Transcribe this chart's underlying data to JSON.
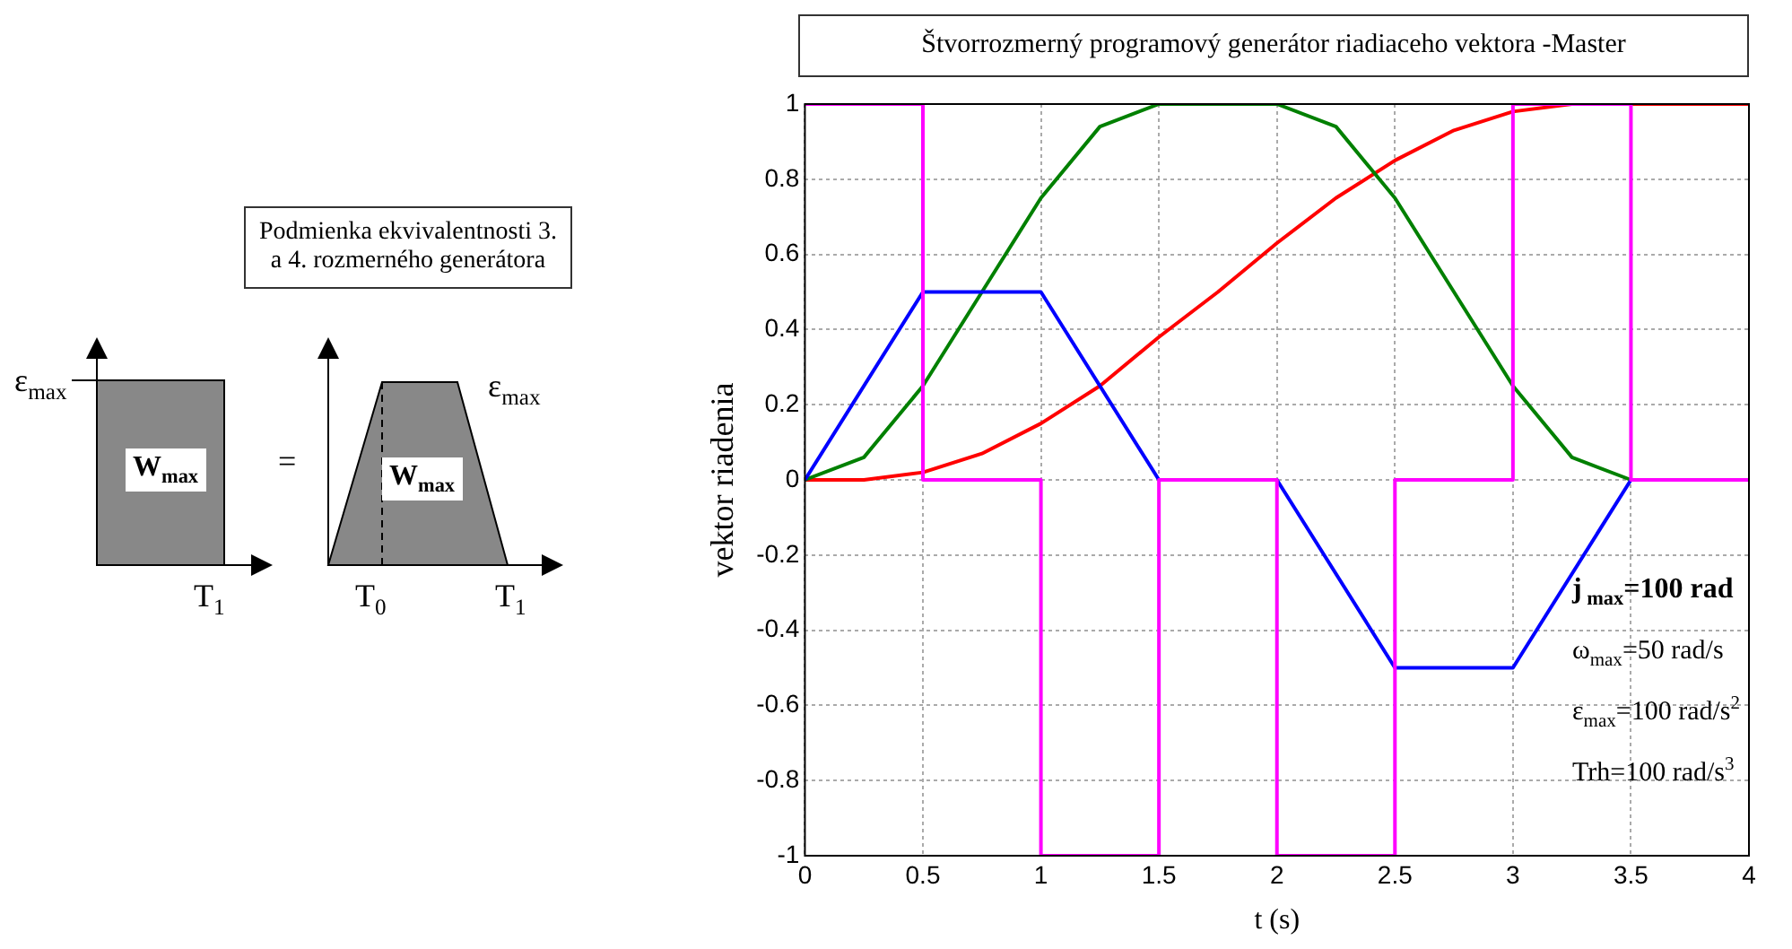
{
  "chart_data": [
    {
      "type": "other",
      "title": "Podmienka ekvivalentnosti 3. a 4. rozmerného generátora",
      "annotations": [
        "ε$_{max}$",
        "W$_{max}$",
        "=",
        "T$_{1}$",
        "W$_{max}$",
        "ε$_{max}$",
        "T$_{0}$",
        "T$_{1}$"
      ]
    },
    {
      "type": "line",
      "title": "Štvorrozmerný programový generátor riadiaceho vektora -Master",
      "xlabel": "t (s)",
      "ylabel": "vektor riadenia",
      "xlim": [
        0,
        4
      ],
      "xticks": [
        0,
        0.5,
        1,
        1.5,
        2,
        2.5,
        3,
        3.5,
        4
      ],
      "ylim": [
        -1,
        1
      ],
      "yticks": [
        -1,
        -0.8,
        -0.6,
        -0.4,
        -0.2,
        0,
        0.2,
        0.4,
        0.6,
        0.8,
        1
      ],
      "grid": true,
      "legend": false,
      "marker": "none",
      "line_style": "solid",
      "annotations": [
        "j$_{ max}$=100 rad",
        "ω$_{max}$=50 rad/s",
        "ε$_{max}$=100 rad/s$^{2}$",
        "Trh=100 rad/s$^{3}$"
      ],
      "series": [
        {
          "color": "#ff00ff",
          "x": [
            0,
            0.5,
            0.5,
            1,
            1,
            1.5,
            1.5,
            2,
            2,
            2.5,
            2.5,
            3,
            3,
            3.5,
            3.5,
            4
          ],
          "values": [
            1,
            1,
            0,
            0,
            -1,
            -1,
            0,
            0,
            -1,
            -1,
            0,
            0,
            1,
            1,
            0,
            0
          ]
        },
        {
          "color": "#0000ff",
          "x": [
            0,
            0.5,
            1,
            1.5,
            2,
            2.5,
            3,
            3.5,
            4
          ],
          "values": [
            0,
            0.5,
            0.5,
            0,
            0,
            -0.5,
            -0.5,
            0,
            0
          ]
        },
        {
          "color": "#008000",
          "x": [
            0,
            0.25,
            0.5,
            0.75,
            1,
            1.25,
            1.5,
            2,
            2.25,
            2.5,
            2.75,
            3,
            3.25,
            3.5,
            4
          ],
          "values": [
            0,
            0.06,
            0.25,
            0.5,
            0.75,
            0.94,
            1,
            1,
            0.94,
            0.75,
            0.5,
            0.25,
            0.06,
            0,
            0
          ]
        },
        {
          "color": "#ff0000",
          "x": [
            0,
            0.25,
            0.5,
            0.75,
            1,
            1.25,
            1.5,
            1.75,
            2,
            2.25,
            2.5,
            2.75,
            3,
            3.25,
            3.5,
            4
          ],
          "values": [
            0,
            0,
            0.02,
            0.07,
            0.15,
            0.25,
            0.38,
            0.5,
            0.63,
            0.75,
            0.85,
            0.93,
            0.98,
            1,
            1,
            1
          ]
        }
      ]
    }
  ]
}
